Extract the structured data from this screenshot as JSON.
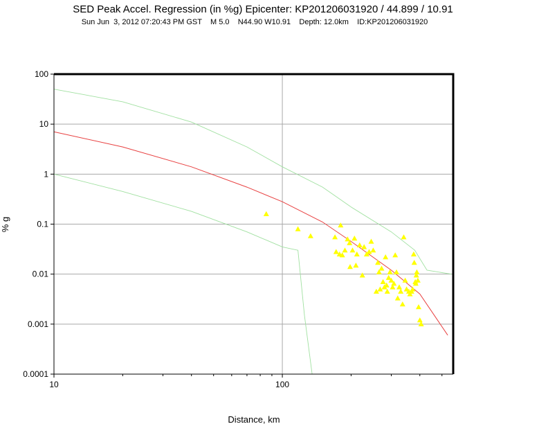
{
  "chart_data": {
    "type": "scatter",
    "title": "SED Peak Accel. Regression (in %g) Epicenter: KP201206031920 / 44.899 / 10.91",
    "subtitle": "Sun Jun  3, 2012 07:20:43 PM GST    M 5.0    N44.90 W10.91    Depth: 12.0km    ID:KP201206031920",
    "xlabel": "Distance, km",
    "ylabel": "% g",
    "x_scale": "log",
    "y_scale": "log",
    "xlim": [
      10,
      560
    ],
    "ylim": [
      0.0001,
      100
    ],
    "x_ticks": [
      10,
      100
    ],
    "x_tick_labels": [
      "10",
      "100"
    ],
    "y_ticks": [
      0.0001,
      0.001,
      0.01,
      0.1,
      1,
      10,
      100
    ],
    "y_tick_labels": [
      "0.0001",
      "0.001",
      "0.01",
      "0.1",
      "1",
      "10",
      "100"
    ],
    "grid": true,
    "colors": {
      "regression": "#e84040",
      "bounds": "#a0e0a0",
      "points": "#ffff00",
      "grid": "#a8a8a8",
      "frame": "#000000"
    },
    "curves": [
      {
        "role": "regression",
        "x": [
          10,
          20,
          40,
          70,
          100,
          150,
          200,
          300,
          400,
          530
        ],
        "y": [
          7,
          3.5,
          1.4,
          0.55,
          0.28,
          0.11,
          0.045,
          0.012,
          0.004,
          0.0006
        ]
      },
      {
        "role": "upper-bound",
        "x": [
          10,
          20,
          40,
          70,
          100,
          150,
          200,
          300,
          380,
          430,
          550
        ],
        "y": [
          50,
          28,
          11,
          3.5,
          1.4,
          0.55,
          0.22,
          0.07,
          0.03,
          0.012,
          0.01
        ]
      },
      {
        "role": "lower-bound",
        "x": [
          10,
          20,
          40,
          70,
          100,
          117,
          125,
          135
        ],
        "y": [
          1,
          0.45,
          0.18,
          0.07,
          0.035,
          0.03,
          0.0015,
          0.0001
        ]
      }
    ],
    "points": [
      {
        "x": 85,
        "y": 0.16
      },
      {
        "x": 117,
        "y": 0.08
      },
      {
        "x": 133,
        "y": 0.058
      },
      {
        "x": 170,
        "y": 0.055
      },
      {
        "x": 172,
        "y": 0.028
      },
      {
        "x": 178,
        "y": 0.025
      },
      {
        "x": 180,
        "y": 0.095
      },
      {
        "x": 183,
        "y": 0.024
      },
      {
        "x": 188,
        "y": 0.03
      },
      {
        "x": 193,
        "y": 0.05
      },
      {
        "x": 197,
        "y": 0.042
      },
      {
        "x": 198,
        "y": 0.014
      },
      {
        "x": 203,
        "y": 0.03
      },
      {
        "x": 207,
        "y": 0.052
      },
      {
        "x": 210,
        "y": 0.015
      },
      {
        "x": 212,
        "y": 0.025
      },
      {
        "x": 218,
        "y": 0.038
      },
      {
        "x": 224,
        "y": 0.0095
      },
      {
        "x": 228,
        "y": 0.035
      },
      {
        "x": 234,
        "y": 0.025
      },
      {
        "x": 240,
        "y": 0.028
      },
      {
        "x": 245,
        "y": 0.045
      },
      {
        "x": 250,
        "y": 0.03
      },
      {
        "x": 258,
        "y": 0.0045
      },
      {
        "x": 262,
        "y": 0.017
      },
      {
        "x": 265,
        "y": 0.011
      },
      {
        "x": 268,
        "y": 0.005
      },
      {
        "x": 272,
        "y": 0.013
      },
      {
        "x": 276,
        "y": 0.007
      },
      {
        "x": 280,
        "y": 0.0055
      },
      {
        "x": 283,
        "y": 0.022
      },
      {
        "x": 286,
        "y": 0.006
      },
      {
        "x": 288,
        "y": 0.0045
      },
      {
        "x": 292,
        "y": 0.0085
      },
      {
        "x": 296,
        "y": 0.011
      },
      {
        "x": 300,
        "y": 0.0075
      },
      {
        "x": 304,
        "y": 0.0055
      },
      {
        "x": 308,
        "y": 0.0065
      },
      {
        "x": 312,
        "y": 0.024
      },
      {
        "x": 316,
        "y": 0.011
      },
      {
        "x": 320,
        "y": 0.0033
      },
      {
        "x": 325,
        "y": 0.0055
      },
      {
        "x": 330,
        "y": 0.0045
      },
      {
        "x": 336,
        "y": 0.0025
      },
      {
        "x": 340,
        "y": 0.055
      },
      {
        "x": 345,
        "y": 0.0075
      },
      {
        "x": 350,
        "y": 0.005
      },
      {
        "x": 358,
        "y": 0.0045
      },
      {
        "x": 362,
        "y": 0.004
      },
      {
        "x": 368,
        "y": 0.0045
      },
      {
        "x": 372,
        "y": 0.005
      },
      {
        "x": 376,
        "y": 0.025
      },
      {
        "x": 378,
        "y": 0.017
      },
      {
        "x": 382,
        "y": 0.007
      },
      {
        "x": 384,
        "y": 0.0065
      },
      {
        "x": 386,
        "y": 0.0095
      },
      {
        "x": 388,
        "y": 0.011
      },
      {
        "x": 392,
        "y": 0.0075
      },
      {
        "x": 395,
        "y": 0.0022
      },
      {
        "x": 400,
        "y": 0.0012
      },
      {
        "x": 405,
        "y": 0.001
      }
    ]
  }
}
